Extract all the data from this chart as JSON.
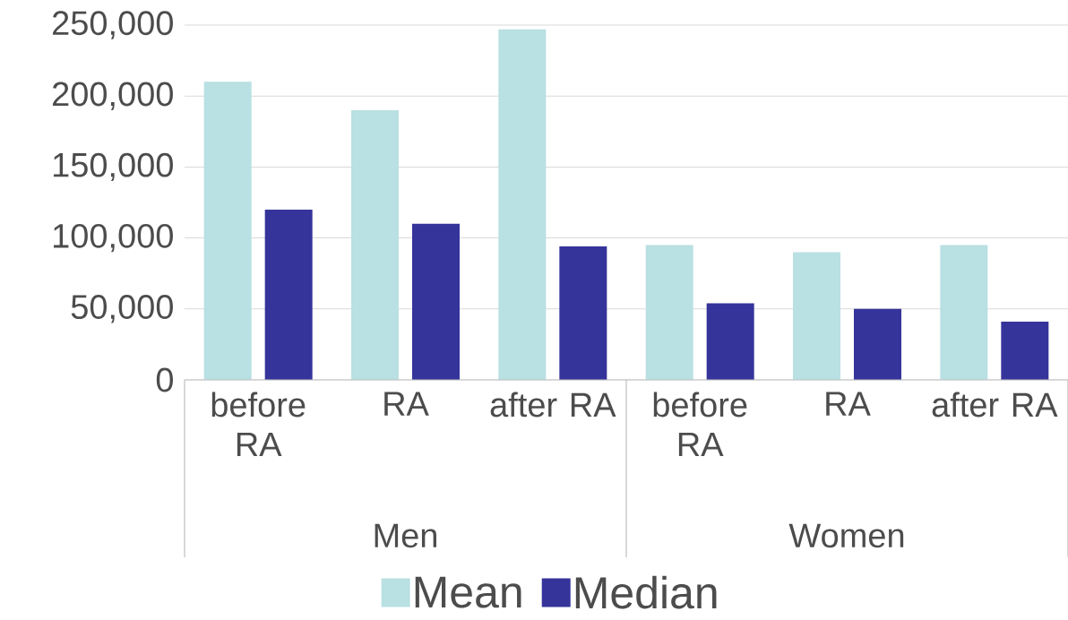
{
  "chart_data": {
    "type": "bar",
    "categories": [
      "before RA",
      "RA",
      "after RA",
      "before RA",
      "RA",
      "after RA"
    ],
    "series": [
      {
        "name": "Mean",
        "color": "#b9e0e3",
        "values": [
          210000,
          190000,
          247000,
          95000,
          90000,
          95000
        ]
      },
      {
        "name": "Median",
        "color": "#35349b",
        "values": [
          120000,
          110000,
          94000,
          54000,
          50000,
          41000
        ]
      }
    ],
    "annotations": [
      "Men",
      "Women"
    ],
    "ylim": [
      0,
      250000
    ],
    "yticks": [
      {
        "value": 0,
        "label": "0"
      },
      {
        "value": 50000,
        "label": "50,000"
      },
      {
        "value": 100000,
        "label": "100,000"
      },
      {
        "value": 150000,
        "label": "150,000"
      },
      {
        "value": 200000,
        "label": "200,000"
      },
      {
        "value": 250000,
        "label": "250,000"
      }
    ],
    "grid": "y",
    "legend": "bottom"
  }
}
